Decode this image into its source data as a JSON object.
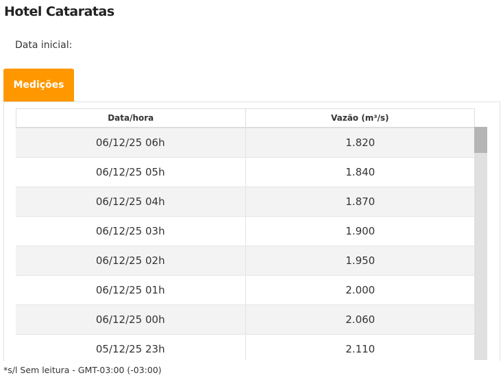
{
  "title": "Hotel Cataratas",
  "date_label": "Data inicial:",
  "tab": "Medições",
  "table": {
    "headers": [
      "Data/hora",
      "Vazão (m³/s)"
    ],
    "rows": [
      [
        "06/12/25 06h",
        "1.820"
      ],
      [
        "06/12/25 05h",
        "1.840"
      ],
      [
        "06/12/25 04h",
        "1.870"
      ],
      [
        "06/12/25 03h",
        "1.900"
      ],
      [
        "06/12/25 02h",
        "1.950"
      ],
      [
        "06/12/25 01h",
        "2.000"
      ],
      [
        "06/12/25 00h",
        "2.060"
      ],
      [
        "05/12/25 23h",
        "2.110"
      ]
    ]
  },
  "footer": "*s/l Sem leitura - GMT-03:00 (-03:00)",
  "colors": {
    "accent": "#ff9800"
  }
}
